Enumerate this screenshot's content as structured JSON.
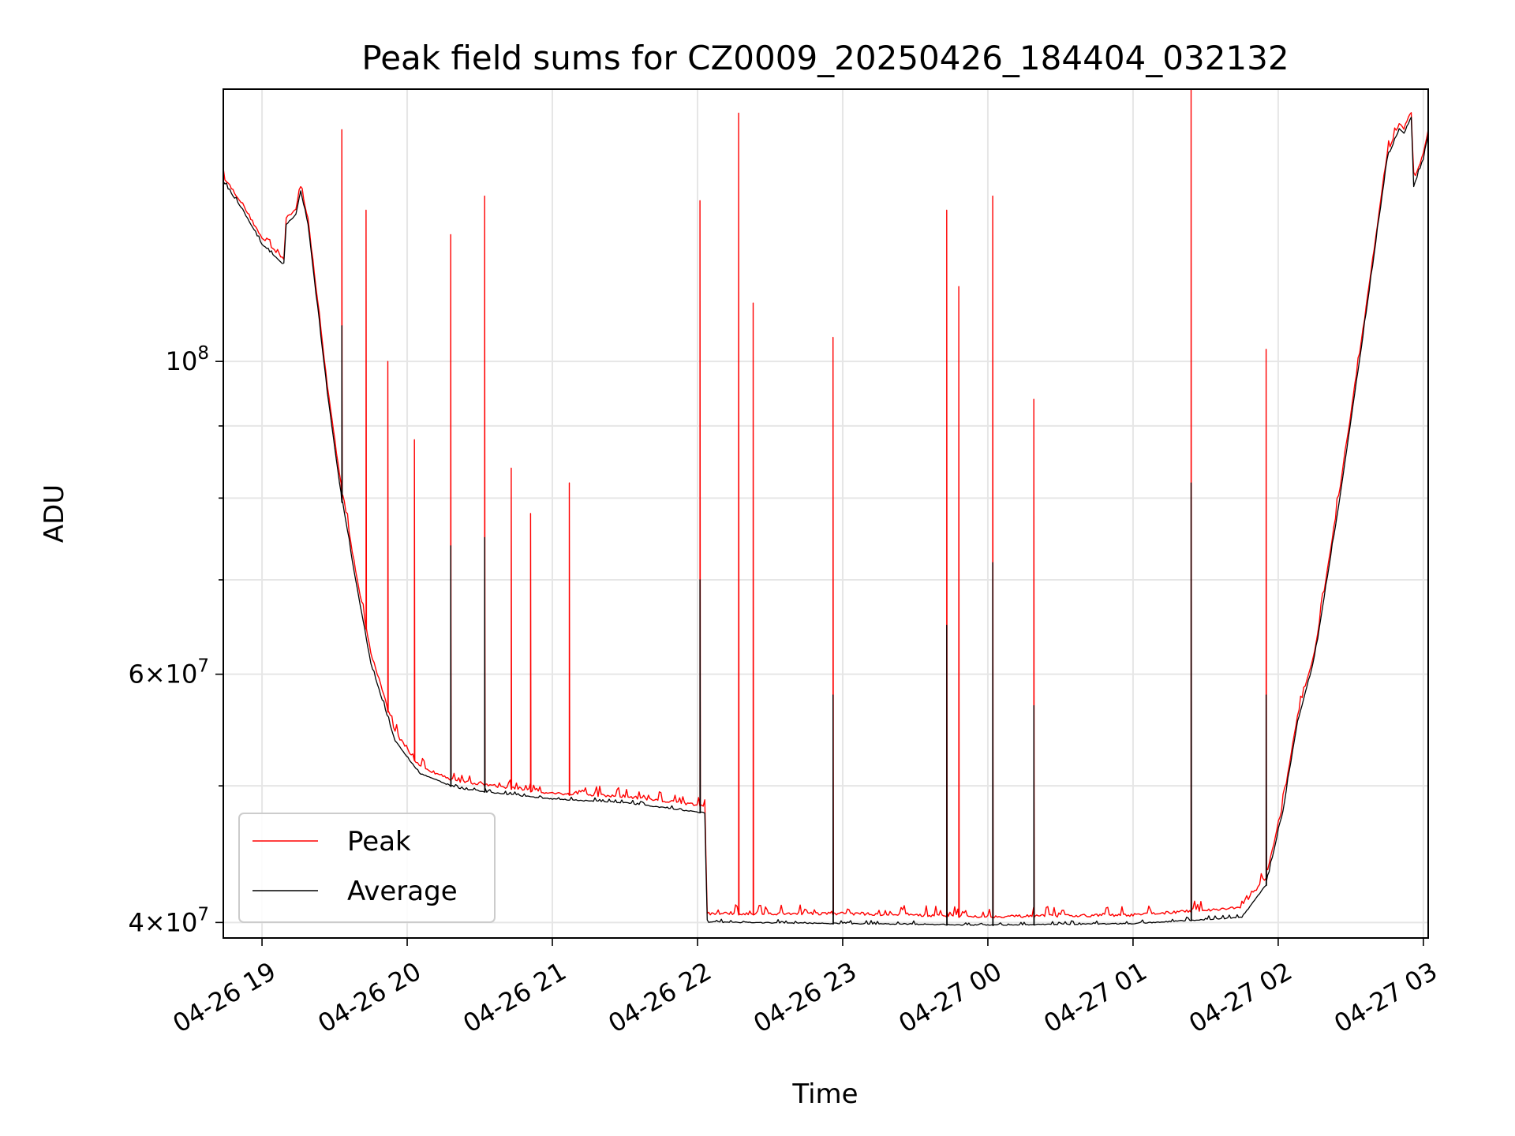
{
  "chart_data": {
    "type": "line",
    "title": "Peak field sums for CZ0009_20250426_184404_032132",
    "xlabel": "Time",
    "ylabel": "ADU",
    "y_scale": "log",
    "ylim": [
      39000000,
      156000000
    ],
    "xlim": [
      "2025-04-26T18:44",
      "2025-04-27T03:02"
    ],
    "x_ticks": [
      {
        "value": "2025-04-26T19:00",
        "label": "04-26 19"
      },
      {
        "value": "2025-04-26T20:00",
        "label": "04-26 20"
      },
      {
        "value": "2025-04-26T21:00",
        "label": "04-26 21"
      },
      {
        "value": "2025-04-26T22:00",
        "label": "04-26 22"
      },
      {
        "value": "2025-04-26T23:00",
        "label": "04-26 23"
      },
      {
        "value": "2025-04-27T00:00",
        "label": "04-27 00"
      },
      {
        "value": "2025-04-27T01:00",
        "label": "04-27 01"
      },
      {
        "value": "2025-04-27T02:00",
        "label": "04-27 02"
      },
      {
        "value": "2025-04-27T03:00",
        "label": "04-27 03"
      }
    ],
    "y_major_ticks": [
      {
        "value": 40000000,
        "mantissa": "4",
        "base": "10",
        "exp": "7"
      },
      {
        "value": 60000000,
        "mantissa": "6",
        "base": "10",
        "exp": "7"
      },
      {
        "value": 100000000,
        "mantissa": "",
        "base": "10",
        "exp": "8"
      }
    ],
    "y_minor_ticks": [
      50000000,
      70000000,
      80000000,
      90000000
    ],
    "grid": true,
    "legend": {
      "placement": "lower-left",
      "entries": [
        "Peak",
        "Average"
      ]
    },
    "series": [
      {
        "name": "Peak",
        "color": "#ff0000",
        "baseline": [
          [
            "2025-04-26T18:44",
            135000000
          ],
          [
            "2025-04-26T18:52",
            129000000
          ],
          [
            "2025-04-26T19:00",
            122000000
          ],
          [
            "2025-04-26T19:09",
            118000000
          ],
          [
            "2025-04-26T19:10",
            126000000
          ],
          [
            "2025-04-26T19:14",
            128000000
          ],
          [
            "2025-04-26T19:16",
            133000000
          ],
          [
            "2025-04-26T19:19",
            126000000
          ],
          [
            "2025-04-26T19:23",
            110000000
          ],
          [
            "2025-04-26T19:27",
            96000000
          ],
          [
            "2025-04-26T19:32",
            83000000
          ],
          [
            "2025-04-26T19:38",
            72000000
          ],
          [
            "2025-04-26T19:45",
            62000000
          ],
          [
            "2025-04-26T19:55",
            54500000
          ],
          [
            "2025-04-26T20:05",
            51500000
          ],
          [
            "2025-04-26T20:20",
            50300000
          ],
          [
            "2025-04-26T20:40",
            49800000
          ],
          [
            "2025-04-26T21:00",
            49300000
          ],
          [
            "2025-04-26T21:30",
            49000000
          ],
          [
            "2025-04-26T22:03",
            48300000
          ],
          [
            "2025-04-26T22:04",
            40500000
          ],
          [
            "2025-04-26T23:00",
            40500000
          ],
          [
            "2025-04-27T00:00",
            40300000
          ],
          [
            "2025-04-27T01:00",
            40400000
          ],
          [
            "2025-04-27T01:45",
            40900000
          ],
          [
            "2025-04-27T01:55",
            43000000
          ],
          [
            "2025-04-27T02:02",
            48500000
          ],
          [
            "2025-04-27T02:08",
            56000000
          ],
          [
            "2025-04-27T02:15",
            62000000
          ],
          [
            "2025-04-27T02:25",
            80000000
          ],
          [
            "2025-04-27T02:35",
            105000000
          ],
          [
            "2025-04-27T02:45",
            140000000
          ],
          [
            "2025-04-27T02:50",
            147000000
          ],
          [
            "2025-04-27T02:52",
            146000000
          ],
          [
            "2025-04-27T02:55",
            150000000
          ],
          [
            "2025-04-27T02:56",
            134000000
          ],
          [
            "2025-04-27T03:00",
            140000000
          ],
          [
            "2025-04-27T03:02",
            146000000
          ]
        ],
        "spikes": [
          [
            "2025-04-26T19:33",
            146000000
          ],
          [
            "2025-04-26T19:43",
            128000000
          ],
          [
            "2025-04-26T19:52",
            100000000
          ],
          [
            "2025-04-26T20:03",
            88000000
          ],
          [
            "2025-04-26T20:18",
            123000000
          ],
          [
            "2025-04-26T20:32",
            131000000
          ],
          [
            "2025-04-26T20:43",
            84000000
          ],
          [
            "2025-04-26T20:51",
            78000000
          ],
          [
            "2025-04-26T21:07",
            82000000
          ],
          [
            "2025-04-26T22:01",
            130000000
          ],
          [
            "2025-04-26T22:17",
            150000000
          ],
          [
            "2025-04-26T22:23",
            110000000
          ],
          [
            "2025-04-26T22:56",
            104000000
          ],
          [
            "2025-04-26T23:43",
            128000000
          ],
          [
            "2025-04-26T23:48",
            113000000
          ],
          [
            "2025-04-27T00:02",
            131000000
          ],
          [
            "2025-04-27T00:19",
            94000000
          ],
          [
            "2025-04-27T01:24",
            156000000
          ],
          [
            "2025-04-27T01:55",
            102000000
          ]
        ]
      },
      {
        "name": "Average",
        "color": "#000000",
        "baseline": [
          [
            "2025-04-26T18:44",
            134000000
          ],
          [
            "2025-04-26T18:52",
            128000000
          ],
          [
            "2025-04-26T19:00",
            121000000
          ],
          [
            "2025-04-26T19:09",
            117000000
          ],
          [
            "2025-04-26T19:10",
            125000000
          ],
          [
            "2025-04-26T19:14",
            127000000
          ],
          [
            "2025-04-26T19:16",
            132000000
          ],
          [
            "2025-04-26T19:19",
            125000000
          ],
          [
            "2025-04-26T19:23",
            109000000
          ],
          [
            "2025-04-26T19:27",
            95000000
          ],
          [
            "2025-04-26T19:32",
            82000000
          ],
          [
            "2025-04-26T19:38",
            71000000
          ],
          [
            "2025-04-26T19:45",
            61000000
          ],
          [
            "2025-04-26T19:55",
            53800000
          ],
          [
            "2025-04-26T20:05",
            51000000
          ],
          [
            "2025-04-26T20:20",
            49800000
          ],
          [
            "2025-04-26T20:40",
            49300000
          ],
          [
            "2025-04-26T21:00",
            48900000
          ],
          [
            "2025-04-26T21:30",
            48600000
          ],
          [
            "2025-04-26T22:03",
            47800000
          ],
          [
            "2025-04-26T22:04",
            40000000
          ],
          [
            "2025-04-26T23:00",
            39900000
          ],
          [
            "2025-04-27T00:00",
            39800000
          ],
          [
            "2025-04-27T01:00",
            39900000
          ],
          [
            "2025-04-27T01:45",
            40300000
          ],
          [
            "2025-04-27T01:55",
            42500000
          ],
          [
            "2025-04-27T02:02",
            48000000
          ],
          [
            "2025-04-27T02:08",
            55500000
          ],
          [
            "2025-04-27T02:15",
            61500000
          ],
          [
            "2025-04-27T02:25",
            79000000
          ],
          [
            "2025-04-27T02:35",
            104000000
          ],
          [
            "2025-04-27T02:45",
            139000000
          ],
          [
            "2025-04-27T02:50",
            146000000
          ],
          [
            "2025-04-27T02:52",
            145000000
          ],
          [
            "2025-04-27T02:55",
            149000000
          ],
          [
            "2025-04-27T02:56",
            133000000
          ],
          [
            "2025-04-27T03:00",
            139000000
          ],
          [
            "2025-04-27T03:02",
            145000000
          ]
        ],
        "spikes": [
          [
            "2025-04-26T19:33",
            106000000
          ],
          [
            "2025-04-26T20:18",
            74000000
          ],
          [
            "2025-04-26T20:32",
            75000000
          ],
          [
            "2025-04-26T22:01",
            70000000
          ],
          [
            "2025-04-26T22:56",
            58000000
          ],
          [
            "2025-04-26T23:43",
            65000000
          ],
          [
            "2025-04-27T00:02",
            72000000
          ],
          [
            "2025-04-27T00:19",
            57000000
          ],
          [
            "2025-04-27T01:24",
            82000000
          ],
          [
            "2025-04-27T01:55",
            58000000
          ]
        ]
      }
    ]
  }
}
